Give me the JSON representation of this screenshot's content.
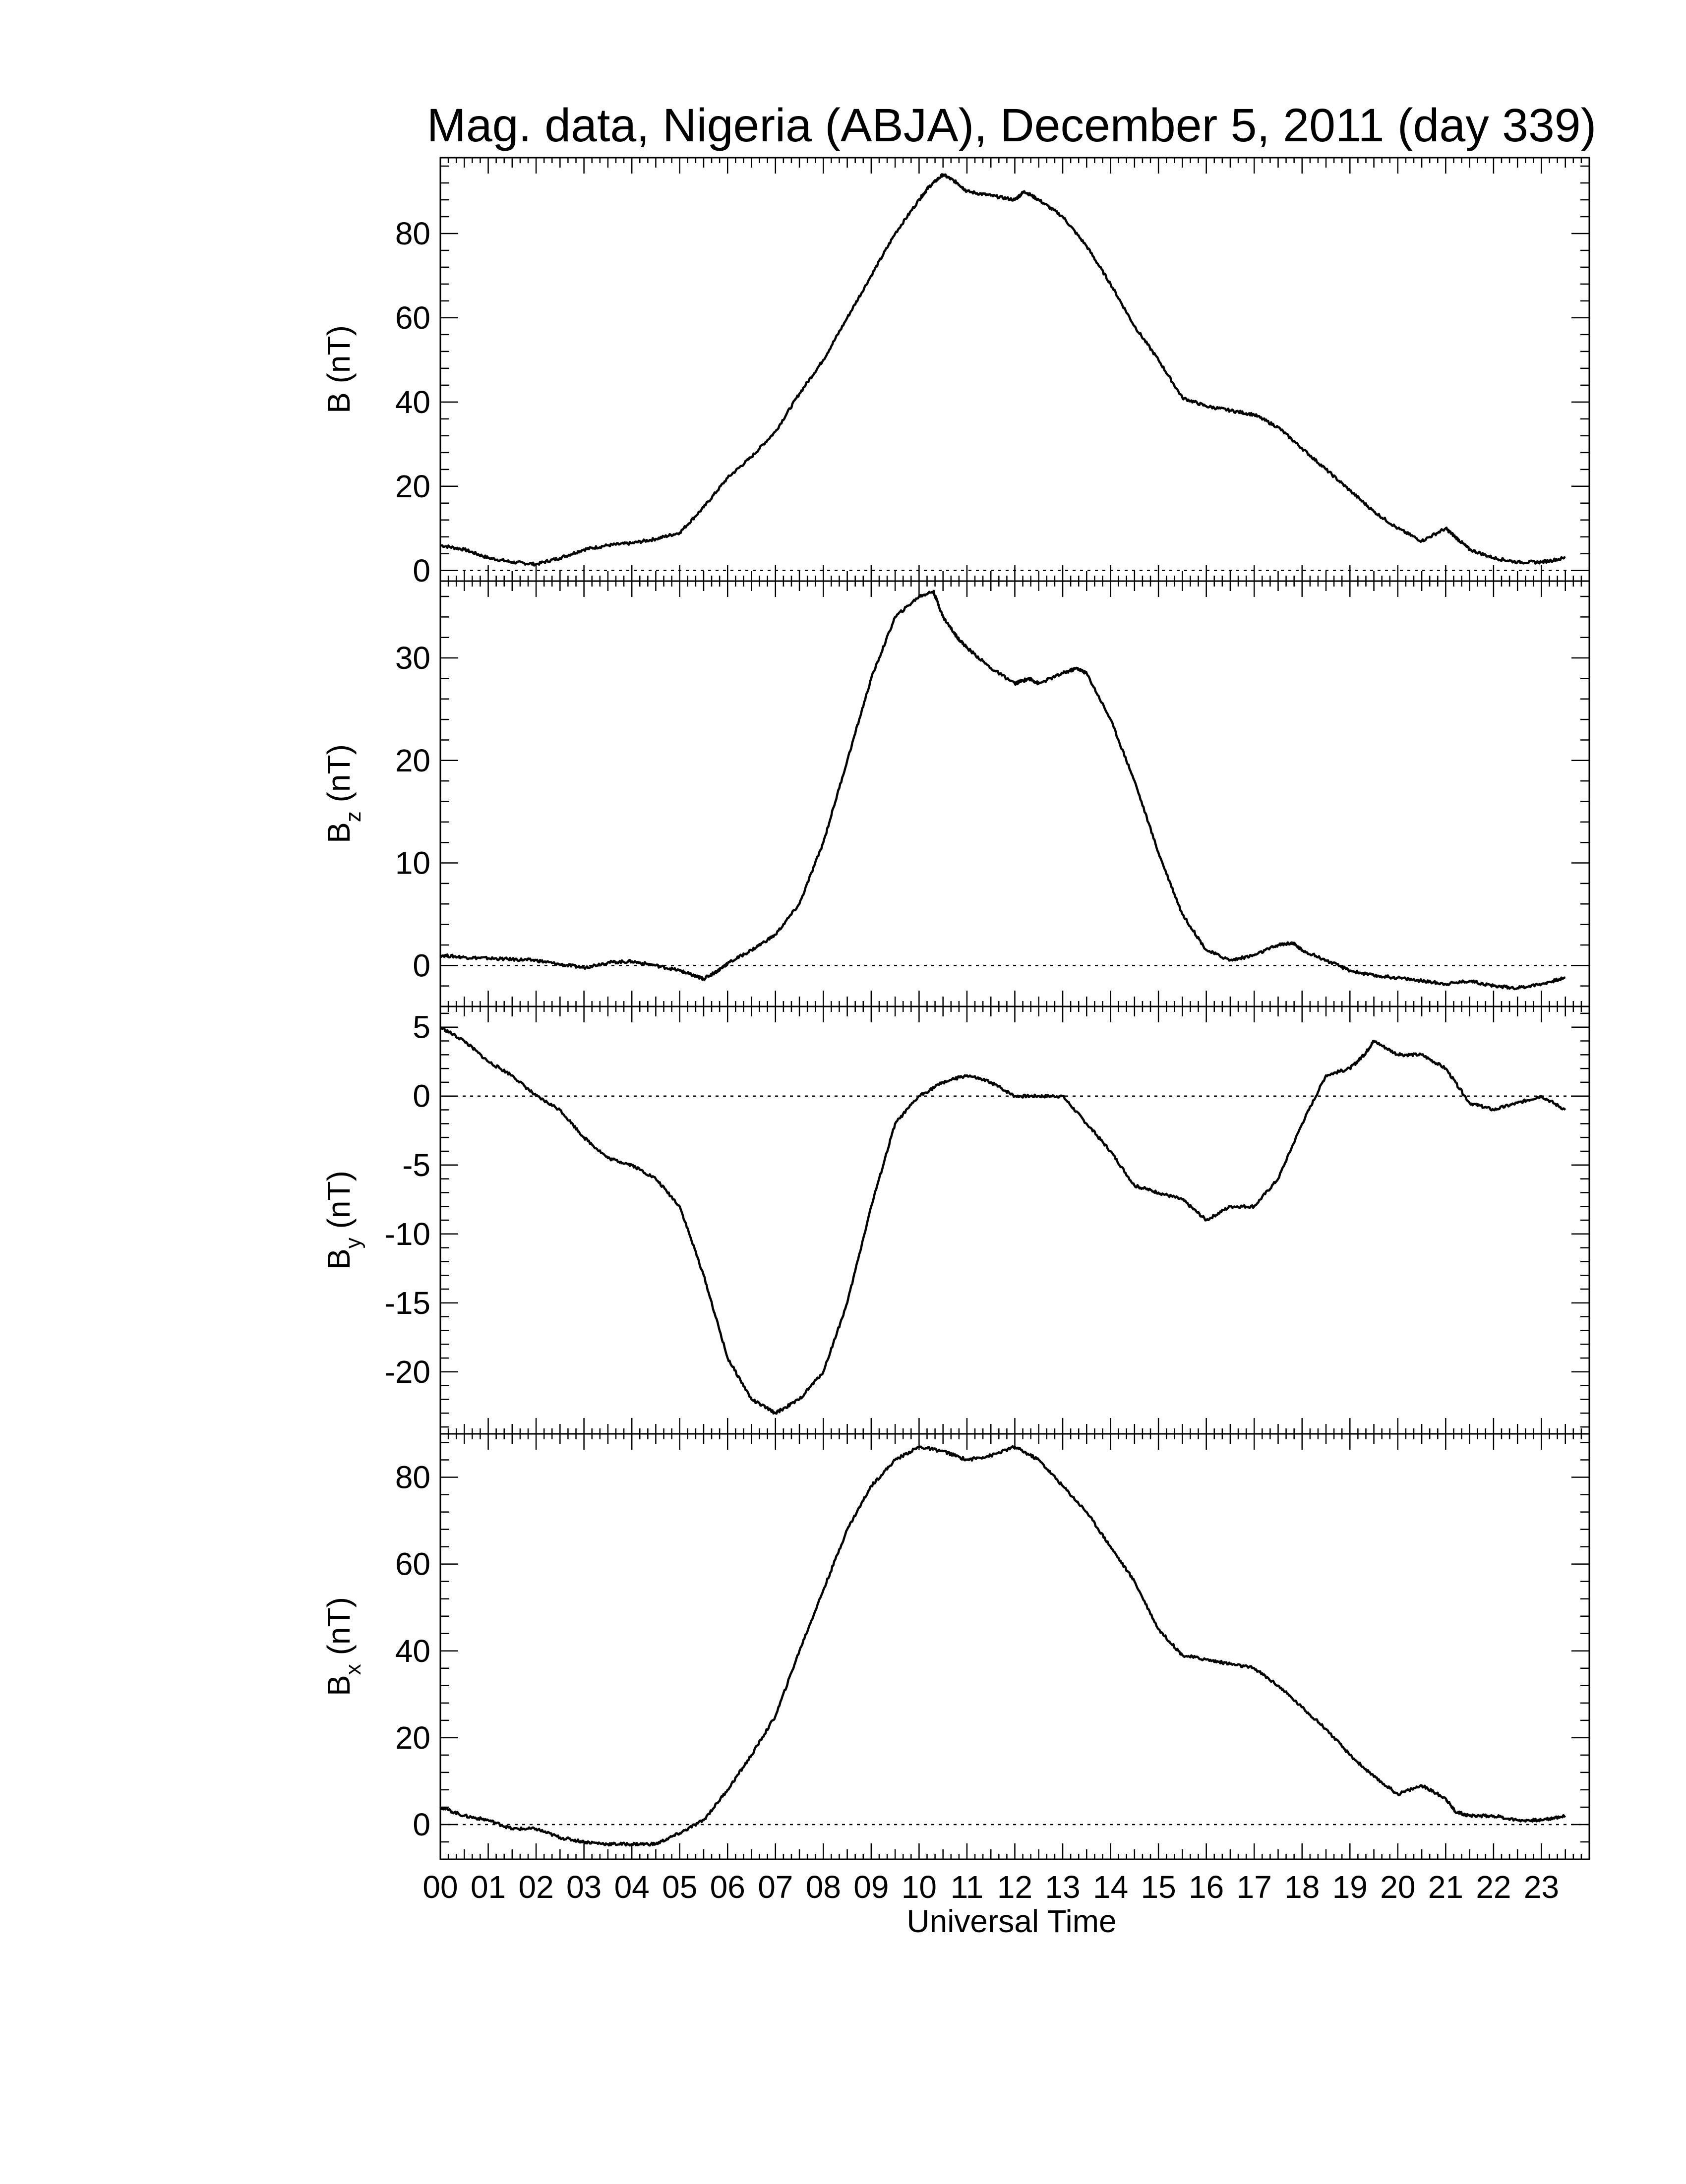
{
  "title": "Mag. data, Nigeria (ABJA), December 5, 2011 (day 339)",
  "xlabel": "Universal Time",
  "x_tick_labels": [
    "00",
    "01",
    "02",
    "03",
    "04",
    "05",
    "06",
    "07",
    "08",
    "09",
    "10",
    "11",
    "12",
    "13",
    "14",
    "15",
    "16",
    "17",
    "18",
    "19",
    "20",
    "21",
    "22",
    "23"
  ],
  "chart_data": [
    {
      "type": "line",
      "ylabel": "B (nT)",
      "ylabel_main": "B",
      "ylabel_sub": "",
      "ylabel_unit": " (nT)",
      "xlim": [
        0,
        24
      ],
      "ylim": [
        -2.5,
        98
      ],
      "yticks": [
        0,
        20,
        40,
        60,
        80
      ],
      "ytick_labels": [
        "0",
        "20",
        "40",
        "60",
        "80"
      ],
      "zero_line": true,
      "line_color": "#000000",
      "series": [
        {
          "x": [
            0,
            0.5,
            1,
            1.5,
            2,
            2.5,
            3,
            3.5,
            4,
            4.5,
            5,
            5.5,
            6,
            6.5,
            7,
            7.5,
            8,
            8.5,
            9,
            9.5,
            10,
            10.2,
            10.5,
            10.8,
            11,
            11.5,
            12,
            12.2,
            12.5,
            13,
            13.5,
            14,
            14.5,
            15,
            15.5,
            16,
            16.5,
            17,
            17.5,
            18,
            18.5,
            19,
            19.5,
            20,
            20.5,
            21,
            21.2,
            21.5,
            22,
            22.5,
            23,
            23.5
          ],
          "y": [
            6,
            5,
            3,
            2,
            1.5,
            3,
            5,
            6,
            6.5,
            7.5,
            9,
            15,
            22,
            27,
            33,
            42,
            50,
            60,
            70,
            80,
            88,
            91,
            94,
            92,
            90,
            89,
            88,
            90,
            88,
            84,
            77,
            68,
            58,
            50,
            41,
            39,
            38,
            37,
            34,
            29,
            24,
            19,
            14,
            10,
            7,
            10,
            8,
            5,
            3,
            2,
            2,
            3
          ]
        }
      ]
    },
    {
      "type": "line",
      "ylabel": "Bz (nT)",
      "ylabel_main": "B",
      "ylabel_sub": "z",
      "ylabel_unit": " (nT)",
      "xlim": [
        0,
        24
      ],
      "ylim": [
        -4,
        37.5
      ],
      "yticks": [
        0,
        10,
        20,
        30
      ],
      "ytick_labels": [
        "0",
        "10",
        "20",
        "30"
      ],
      "zero_line": true,
      "line_color": "#000000",
      "series": [
        {
          "x": [
            0,
            0.5,
            1,
            1.5,
            2,
            2.5,
            3,
            3.5,
            4,
            4.5,
            5,
            5.3,
            5.5,
            5.8,
            6,
            6.5,
            7,
            7.5,
            8,
            8.5,
            9,
            9.5,
            10,
            10.3,
            10.5,
            10.8,
            11,
            11.5,
            12,
            12.3,
            12.5,
            13,
            13.3,
            13.5,
            14,
            14.5,
            15,
            15.5,
            16,
            16.5,
            17,
            17.5,
            17.8,
            18,
            18.5,
            19,
            19.5,
            20,
            20.5,
            21,
            21.5,
            22,
            22.5,
            23,
            23.5
          ],
          "y": [
            1,
            0.8,
            0.7,
            0.6,
            0.5,
            0.1,
            -0.2,
            0.3,
            0.4,
            0,
            -0.5,
            -1,
            -1.3,
            -0.5,
            0.2,
            1.5,
            3,
            6,
            12,
            20,
            28,
            34,
            36,
            36.5,
            34,
            32,
            31,
            29,
            27.5,
            28,
            27.5,
            28.5,
            29,
            28.5,
            24,
            18,
            11,
            5,
            1.5,
            0.5,
            1,
            2,
            2.2,
            1.5,
            0.5,
            -0.5,
            -1,
            -1.2,
            -1.5,
            -1.8,
            -1.5,
            -2,
            -2.2,
            -1.8,
            -1.2
          ]
        }
      ]
    },
    {
      "type": "line",
      "ylabel": "By (nT)",
      "ylabel_main": "B",
      "ylabel_sub": "y",
      "ylabel_unit": " (nT)",
      "xlim": [
        0,
        24
      ],
      "ylim": [
        -24.5,
        6.5
      ],
      "yticks": [
        -20,
        -15,
        -10,
        -5,
        0,
        5
      ],
      "ytick_labels": [
        "-20",
        "-15",
        "-10",
        "-5",
        "0",
        "5"
      ],
      "zero_line": true,
      "line_color": "#000000",
      "series": [
        {
          "x": [
            0,
            0.5,
            1,
            1.5,
            2,
            2.5,
            3,
            3.5,
            4,
            4.5,
            5,
            5.5,
            6,
            6.5,
            7,
            7.5,
            8,
            8.5,
            9,
            9.5,
            10,
            10.5,
            11,
            11.5,
            12,
            12.5,
            13,
            13.5,
            14,
            14.5,
            15,
            15.5,
            16,
            16.5,
            17,
            17.5,
            18,
            18.5,
            19,
            19.3,
            19.5,
            20,
            20.5,
            21,
            21.5,
            22,
            22.5,
            23,
            23.5
          ],
          "y": [
            5,
            4,
            2.5,
            1.5,
            0,
            -1,
            -3,
            -4.5,
            -5,
            -6,
            -8,
            -13,
            -19,
            -22,
            -23,
            -22,
            -20,
            -15,
            -8,
            -2,
            0,
            1,
            1.5,
            1,
            0,
            0,
            0,
            -2,
            -4,
            -6.5,
            -7,
            -7.5,
            -9,
            -8,
            -8,
            -6,
            -2,
            1.5,
            2,
            3,
            4,
            3,
            3,
            2,
            -0.5,
            -1,
            -0.5,
            0,
            -1
          ]
        }
      ]
    },
    {
      "type": "line",
      "ylabel": "Bx (nT)",
      "ylabel_main": "B",
      "ylabel_sub": "x",
      "ylabel_unit": " (nT)",
      "xlim": [
        0,
        24
      ],
      "ylim": [
        -8,
        90
      ],
      "yticks": [
        0,
        20,
        40,
        60,
        80
      ],
      "ytick_labels": [
        "0",
        "20",
        "40",
        "60",
        "80"
      ],
      "zero_line": true,
      "line_color": "#000000",
      "series": [
        {
          "x": [
            0,
            0.5,
            1,
            1.5,
            2,
            2.5,
            3,
            3.5,
            4,
            4.5,
            5,
            5.5,
            6,
            6.5,
            7,
            7.5,
            8,
            8.5,
            9,
            9.5,
            10,
            10.5,
            11,
            11.5,
            12,
            12.5,
            13,
            13.5,
            14,
            14.5,
            15,
            15.5,
            16,
            16.5,
            17,
            17.5,
            18,
            18.5,
            19,
            19.5,
            20,
            20.5,
            21,
            21.2,
            21.5,
            22,
            22.5,
            23,
            23.5
          ],
          "y": [
            4,
            2,
            1,
            -1,
            -1,
            -3,
            -4,
            -4.5,
            -4.5,
            -4.5,
            -2,
            1,
            8,
            16,
            25,
            40,
            54,
            68,
            78,
            84,
            87,
            86,
            84,
            85,
            87,
            84,
            78,
            72,
            64,
            56,
            45,
            39,
            38,
            37,
            36,
            32,
            27,
            22,
            16,
            11,
            7,
            9,
            6,
            3,
            2,
            2,
            1,
            1,
            2
          ]
        }
      ]
    }
  ]
}
